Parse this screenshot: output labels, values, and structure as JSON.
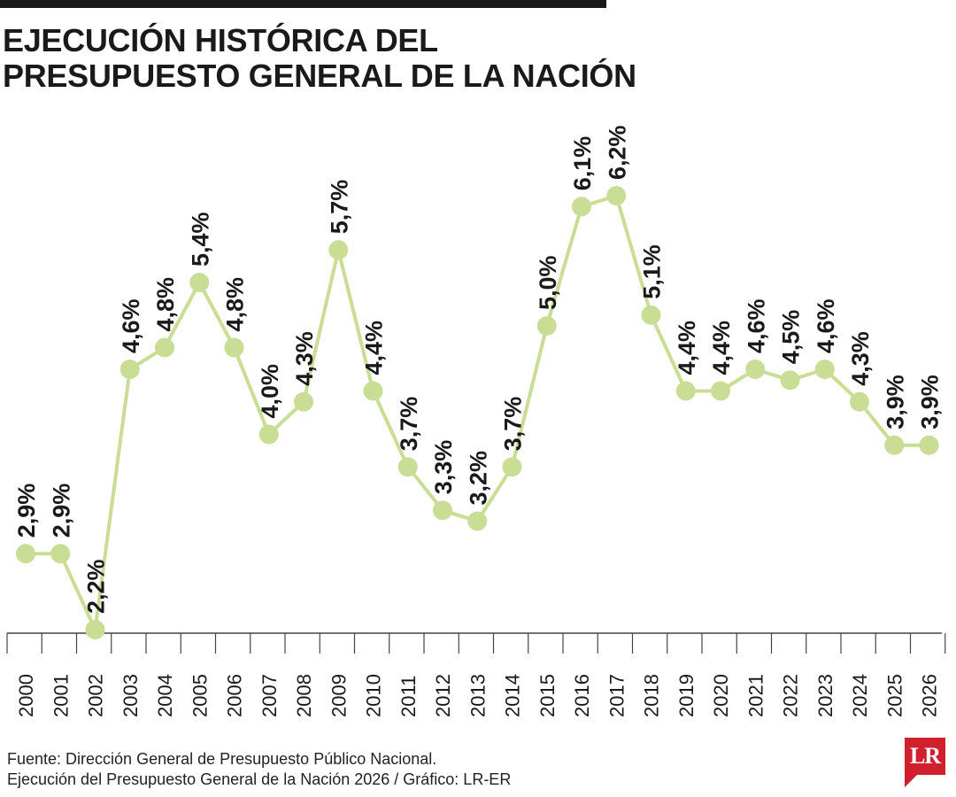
{
  "header": {
    "title_line1": "EJECUCIÓN HISTÓRICA DEL",
    "title_line2": "PRESUPUESTO GENERAL DE LA NACIÓN"
  },
  "chart_data": {
    "type": "line",
    "title": "EJECUCIÓN HISTÓRICA DEL PRESUPUESTO GENERAL DE LA NACIÓN",
    "xlabel": "",
    "ylabel": "",
    "categories": [
      "2000",
      "2001",
      "2002",
      "2003",
      "2004",
      "2005",
      "2006",
      "2007",
      "2008",
      "2009",
      "2010",
      "2011",
      "2012",
      "2013",
      "2014",
      "2015",
      "2016",
      "2017",
      "2018",
      "2019",
      "2020",
      "2021",
      "2022",
      "2023",
      "2024",
      "2025",
      "2026"
    ],
    "values": [
      2.9,
      2.9,
      2.2,
      4.6,
      4.8,
      5.4,
      4.8,
      4.0,
      4.3,
      5.7,
      4.4,
      3.7,
      3.3,
      3.2,
      3.7,
      5.0,
      6.1,
      6.2,
      5.1,
      4.4,
      4.4,
      4.6,
      4.5,
      4.6,
      4.3,
      3.9,
      3.9
    ],
    "labels": [
      "2,9%",
      "2,9%",
      "2,2%",
      "4,6%",
      "4,8%",
      "5,4%",
      "4,8%",
      "4,0%",
      "4,3%",
      "5,7%",
      "4,4%",
      "3,7%",
      "3,3%",
      "3,2%",
      "3,7%",
      "5,0%",
      "6,1%",
      "6,2%",
      "5,1%",
      "4,4%",
      "4,4%",
      "4,6%",
      "4,5%",
      "4,6%",
      "4,3%",
      "3,9%",
      "3,9%"
    ],
    "grid": false,
    "legend": "none",
    "colors": {
      "line": "#c9dd94",
      "marker": "#c9dd94",
      "text": "#1a1a1a",
      "axis": "#444444"
    }
  },
  "footer": {
    "source_line1": "Fuente: Dirección General de Presupuesto Público Nacional.",
    "source_line2": "Ejecución del Presupuesto General de la Nación 2026 / Gráfico: LR-ER"
  },
  "logo": {
    "text": "LR",
    "color": "#d0202e"
  }
}
